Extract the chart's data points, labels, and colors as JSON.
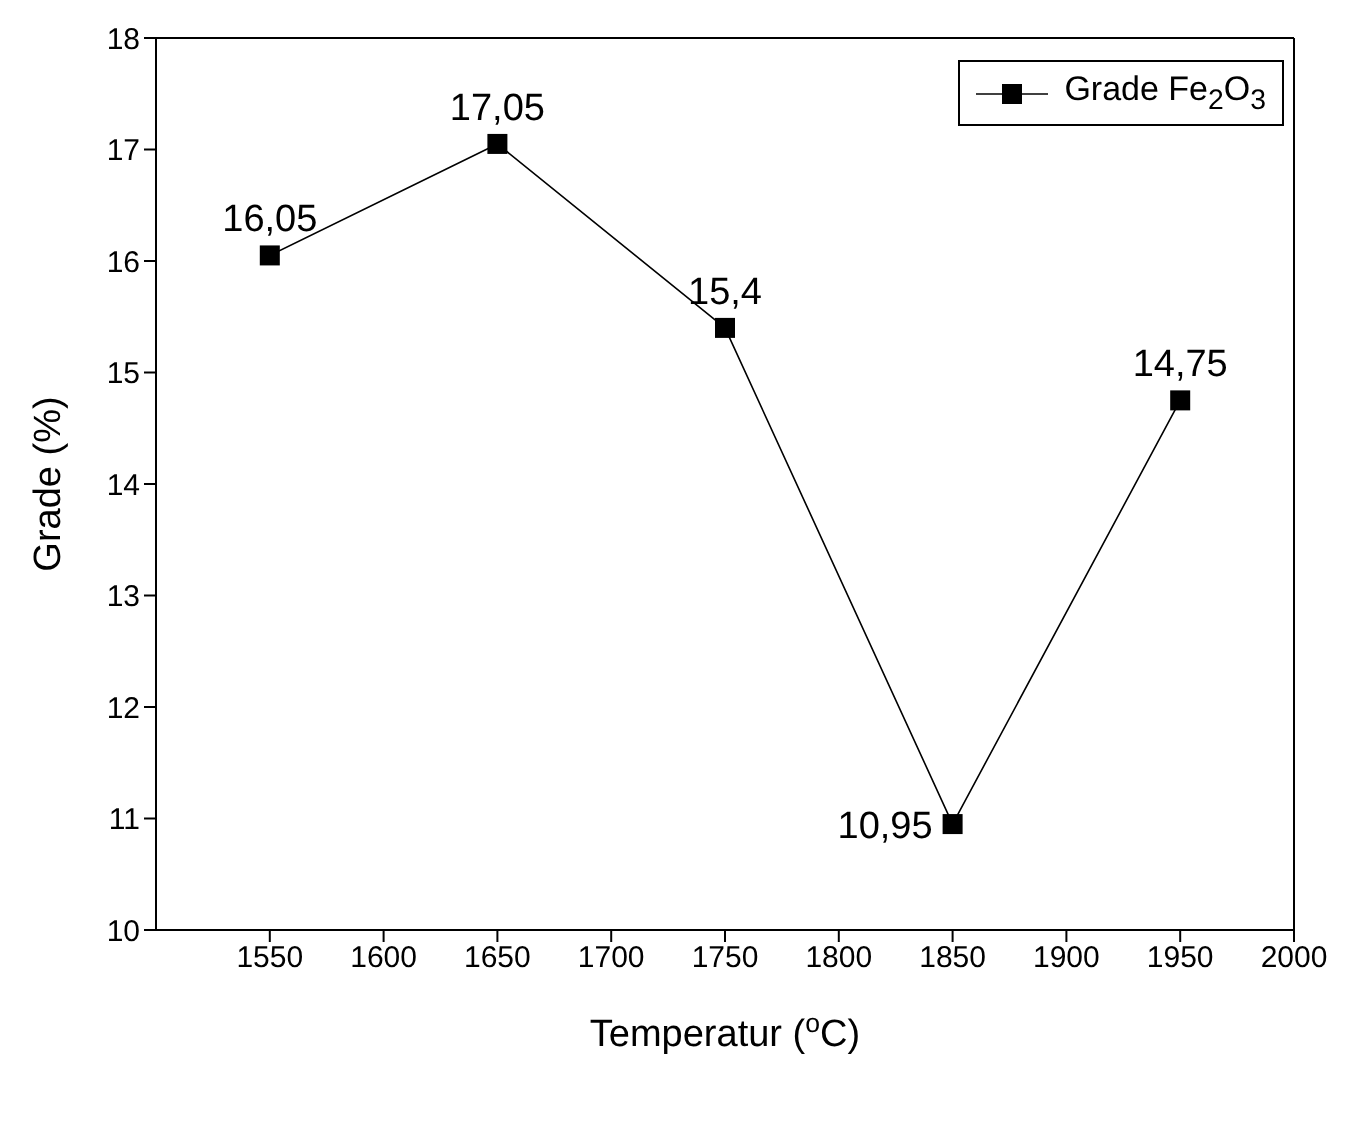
{
  "chart_data": {
    "type": "line",
    "xlabel": "Temperatur ($^{o}$C)",
    "ylabel": "Grade (%)",
    "x": [
      1550,
      1650,
      1750,
      1850,
      1950
    ],
    "series": [
      {
        "name": "Grade Fe$_{2}$O$_{3}$",
        "color": "#000000",
        "values": [
          16.05,
          17.05,
          15.4,
          10.95,
          14.75
        ],
        "value_labels": [
          "16,05",
          "17,05",
          "15,4",
          "10,95",
          "14,75"
        ]
      }
    ],
    "xlim": [
      1500,
      2000
    ],
    "xticks": [
      1550,
      1600,
      1650,
      1700,
      1750,
      1800,
      1850,
      1900,
      1950,
      2000
    ],
    "ylim": [
      10,
      18
    ],
    "yticks": [
      10,
      11,
      12,
      13,
      14,
      15,
      16,
      17,
      18
    ],
    "legend": "top right",
    "marker": "square",
    "line_style": "solid",
    "grid": false
  }
}
